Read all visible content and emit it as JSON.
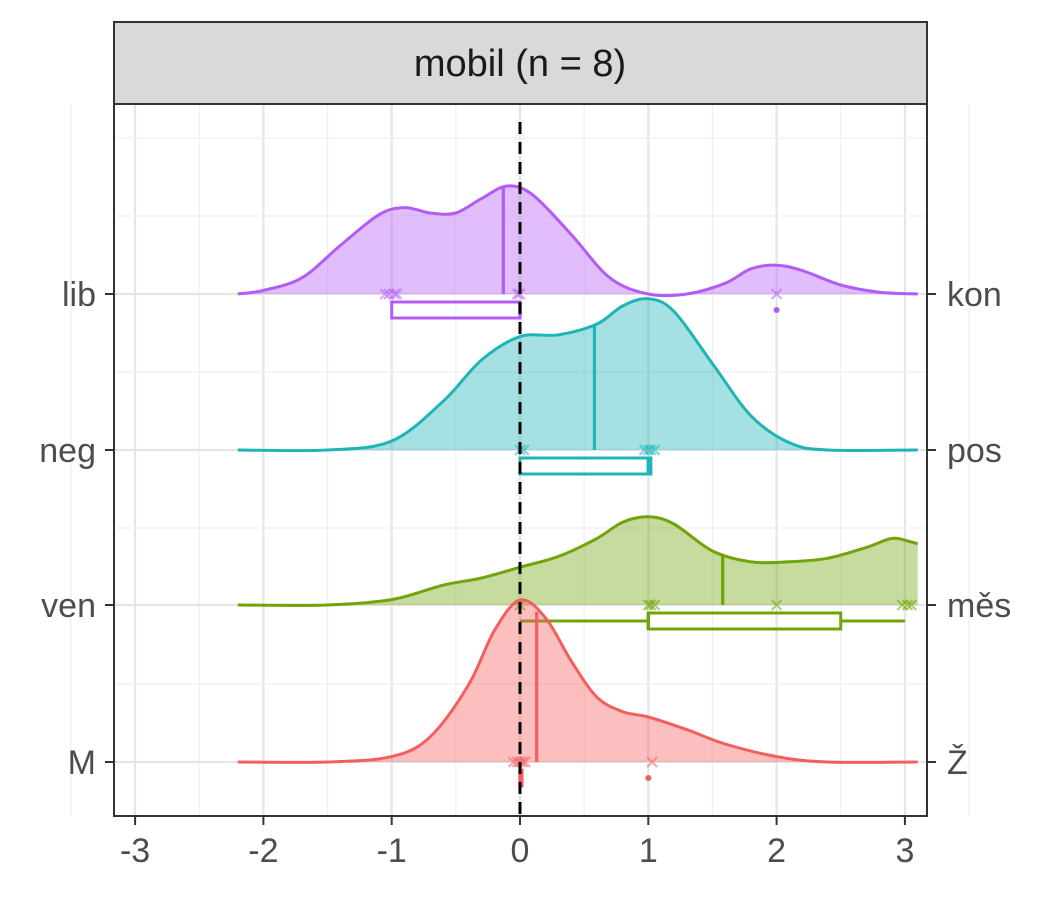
{
  "chart_data": {
    "type": "density",
    "facet_title": "mobil (n = 8)",
    "x_ticks": [
      "-3",
      "-2",
      "-1",
      "0",
      "1",
      "2",
      "3"
    ],
    "x_tick_values": [
      -3,
      -2,
      -1,
      0,
      1,
      2,
      3
    ],
    "xlim": [
      -3.15,
      3.15
    ],
    "reference_line_x": 0,
    "grid": true,
    "rows": [
      {
        "left_label": "lib",
        "right_label": "kon",
        "color": "#b35cf5",
        "density": [
          [
            -2.2,
            0.0
          ],
          [
            -2.0,
            0.02
          ],
          [
            -1.7,
            0.09
          ],
          [
            -1.4,
            0.27
          ],
          [
            -1.1,
            0.44
          ],
          [
            -0.9,
            0.48
          ],
          [
            -0.7,
            0.45
          ],
          [
            -0.5,
            0.45
          ],
          [
            -0.3,
            0.53
          ],
          [
            -0.1,
            0.6
          ],
          [
            0.1,
            0.55
          ],
          [
            0.4,
            0.33
          ],
          [
            0.7,
            0.09
          ],
          [
            1.0,
            0.0
          ],
          [
            1.3,
            0.0
          ],
          [
            1.6,
            0.06
          ],
          [
            1.8,
            0.14
          ],
          [
            2.0,
            0.16
          ],
          [
            2.2,
            0.13
          ],
          [
            2.5,
            0.05
          ],
          [
            2.8,
            0.01
          ],
          [
            3.1,
            0.0
          ]
        ],
        "mean": -0.13,
        "points": [
          -1.05,
          -1.02,
          -0.98,
          -0.96,
          -0.02,
          0.0,
          2.0
        ],
        "dot": 2.0,
        "box": {
          "q1": -1.0,
          "median": 0.0,
          "q3": 0.0,
          "whisker_low": -1.0,
          "whisker_high": 0.0
        }
      },
      {
        "left_label": "neg",
        "right_label": "pos",
        "color": "#1fb5b7",
        "density": [
          [
            -2.2,
            0.0
          ],
          [
            -1.5,
            0.0
          ],
          [
            -1.0,
            0.05
          ],
          [
            -0.6,
            0.27
          ],
          [
            -0.3,
            0.5
          ],
          [
            0.0,
            0.63
          ],
          [
            0.3,
            0.64
          ],
          [
            0.6,
            0.7
          ],
          [
            0.8,
            0.8
          ],
          [
            1.0,
            0.84
          ],
          [
            1.2,
            0.77
          ],
          [
            1.5,
            0.48
          ],
          [
            1.8,
            0.19
          ],
          [
            2.1,
            0.04
          ],
          [
            2.4,
            0.0
          ],
          [
            3.1,
            0.0
          ]
        ],
        "mean": 0.58,
        "points": [
          0.0,
          0.03,
          0.97,
          1.0,
          1.02,
          1.05
        ],
        "box": {
          "q1": 0.0,
          "median": 1.0,
          "q3": 1.02,
          "whisker_low": 0.0,
          "whisker_high": 1.02
        }
      },
      {
        "left_label": "ven",
        "right_label": "měs",
        "color": "#71a40a",
        "density": [
          [
            -2.2,
            0.0
          ],
          [
            -1.5,
            0.0
          ],
          [
            -1.0,
            0.03
          ],
          [
            -0.6,
            0.11
          ],
          [
            -0.3,
            0.15
          ],
          [
            0.0,
            0.21
          ],
          [
            0.3,
            0.27
          ],
          [
            0.6,
            0.37
          ],
          [
            0.8,
            0.46
          ],
          [
            1.0,
            0.49
          ],
          [
            1.2,
            0.45
          ],
          [
            1.5,
            0.3
          ],
          [
            1.8,
            0.24
          ],
          [
            2.1,
            0.24
          ],
          [
            2.4,
            0.26
          ],
          [
            2.7,
            0.32
          ],
          [
            2.9,
            0.37
          ],
          [
            3.05,
            0.35
          ],
          [
            3.1,
            0.34
          ]
        ],
        "mean": 1.58,
        "points": [
          0.0,
          1.0,
          1.02,
          1.05,
          2.0,
          2.98,
          3.02,
          3.05
        ],
        "box": {
          "q1": 1.0,
          "median": 1.0,
          "q3": 2.5,
          "whisker_low": 0.0,
          "whisker_high": 3.0
        }
      },
      {
        "left_label": "M",
        "right_label": "Ž",
        "color": "#f25f5c",
        "density": [
          [
            -2.2,
            0.0
          ],
          [
            -1.5,
            0.0
          ],
          [
            -1.0,
            0.03
          ],
          [
            -0.7,
            0.14
          ],
          [
            -0.4,
            0.43
          ],
          [
            -0.2,
            0.73
          ],
          [
            0.0,
            0.9
          ],
          [
            0.2,
            0.8
          ],
          [
            0.4,
            0.56
          ],
          [
            0.6,
            0.36
          ],
          [
            0.8,
            0.28
          ],
          [
            1.0,
            0.25
          ],
          [
            1.3,
            0.18
          ],
          [
            1.6,
            0.1
          ],
          [
            2.0,
            0.03
          ],
          [
            2.4,
            0.0
          ],
          [
            3.1,
            0.0
          ]
        ],
        "mean": 0.13,
        "points": [
          -0.05,
          -0.02,
          0.0,
          0.02,
          0.04,
          1.03
        ],
        "dot": 1.0,
        "box": {
          "q1": 0.0,
          "median": 0.0,
          "q3": 0.0,
          "whisker_low": 0.0,
          "whisker_high": 0.0
        }
      }
    ]
  }
}
